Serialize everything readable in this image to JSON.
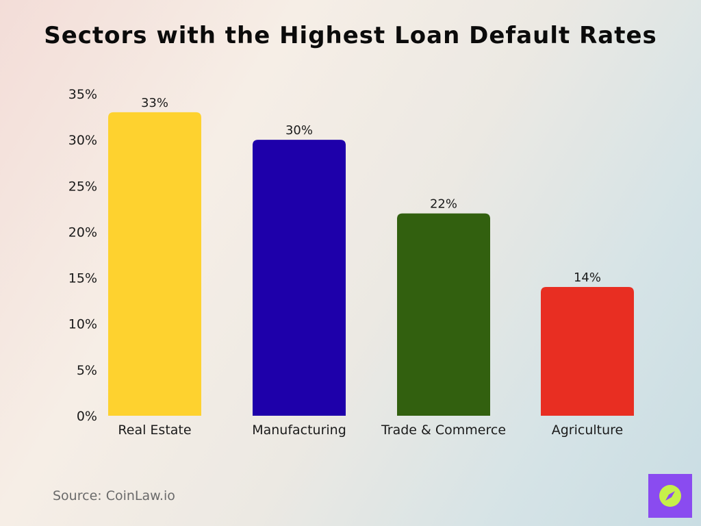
{
  "chart_data": {
    "type": "bar",
    "title": "Sectors with the Highest Loan Default Rates",
    "categories": [
      "Real Estate",
      "Manufacturing",
      "Trade & Commerce",
      "Agriculture"
    ],
    "values": [
      33,
      30,
      22,
      14
    ],
    "data_labels": [
      "33%",
      "30%",
      "22%",
      "14%"
    ],
    "bar_colors": [
      "#fed22f",
      "#1e00aa",
      "#32600f",
      "#e82e22"
    ],
    "yticks": [
      "0%",
      "5%",
      "10%",
      "15%",
      "20%",
      "25%",
      "30%",
      "35%"
    ],
    "ylim": [
      0,
      35
    ],
    "xlabel": "",
    "ylabel": "",
    "grid": false,
    "legend": "none"
  },
  "source": "Source: CoinLaw.io",
  "logo": {
    "icon": "compass-icon",
    "color": "#8a4bf0",
    "accent": "#c6f04a"
  }
}
